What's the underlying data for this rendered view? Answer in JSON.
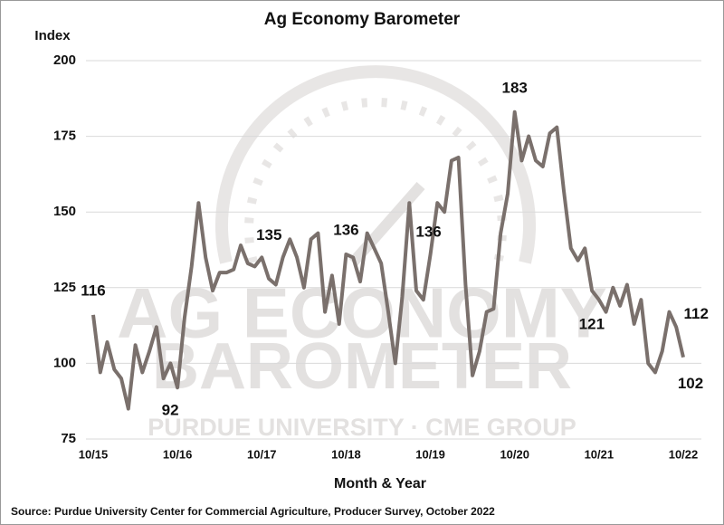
{
  "chart_data": {
    "type": "line",
    "title": "Ag Economy Barometer",
    "y_label": "Index",
    "x_label": "Month & Year",
    "source": "Source: Purdue University Center for Commercial Agriculture, Producer Survey, October 2022",
    "watermark": {
      "line1": "AG ECONOMY",
      "line2": "BAROMETER",
      "line3": "PURDUE UNIVERSITY · CME GROUP"
    },
    "categories": [
      "10/15",
      null,
      null,
      null,
      null,
      null,
      null,
      null,
      null,
      null,
      null,
      null,
      "10/16",
      null,
      null,
      null,
      null,
      null,
      null,
      null,
      null,
      null,
      null,
      null,
      "10/17",
      null,
      null,
      null,
      null,
      null,
      null,
      null,
      null,
      null,
      null,
      null,
      "10/18",
      null,
      null,
      null,
      null,
      null,
      null,
      null,
      null,
      null,
      null,
      null,
      "10/19",
      null,
      null,
      null,
      null,
      null,
      null,
      null,
      null,
      null,
      null,
      null,
      "10/20",
      null,
      null,
      null,
      null,
      null,
      null,
      null,
      null,
      null,
      null,
      null,
      "10/21",
      null,
      null,
      null,
      null,
      null,
      null,
      null,
      null,
      null,
      null,
      null,
      "10/22"
    ],
    "values": [
      116,
      97,
      107,
      98,
      95,
      85,
      106,
      97,
      104,
      112,
      95,
      100,
      92,
      115,
      132,
      153,
      135,
      124,
      130,
      130,
      131,
      139,
      133,
      132,
      135,
      128,
      126,
      135,
      141,
      135,
      125,
      141,
      143,
      117,
      129,
      113,
      136,
      135,
      127,
      143,
      138,
      133,
      117,
      100,
      122,
      153,
      124,
      121,
      136,
      153,
      150,
      167,
      168,
      126,
      96,
      104,
      117,
      118,
      143,
      156,
      183,
      167,
      175,
      167,
      165,
      176,
      178,
      157,
      138,
      134,
      138,
      124,
      121,
      117,
      125,
      119,
      126,
      113,
      121,
      100,
      97,
      104,
      117,
      112,
      102
    ],
    "labeled_points": [
      0,
      12,
      24,
      36,
      48,
      60,
      72,
      83,
      84
    ],
    "color": "#7a706c",
    "ylim": [
      75,
      200
    ],
    "yticks": [
      75,
      100,
      125,
      150,
      175,
      200
    ],
    "grid": true
  }
}
